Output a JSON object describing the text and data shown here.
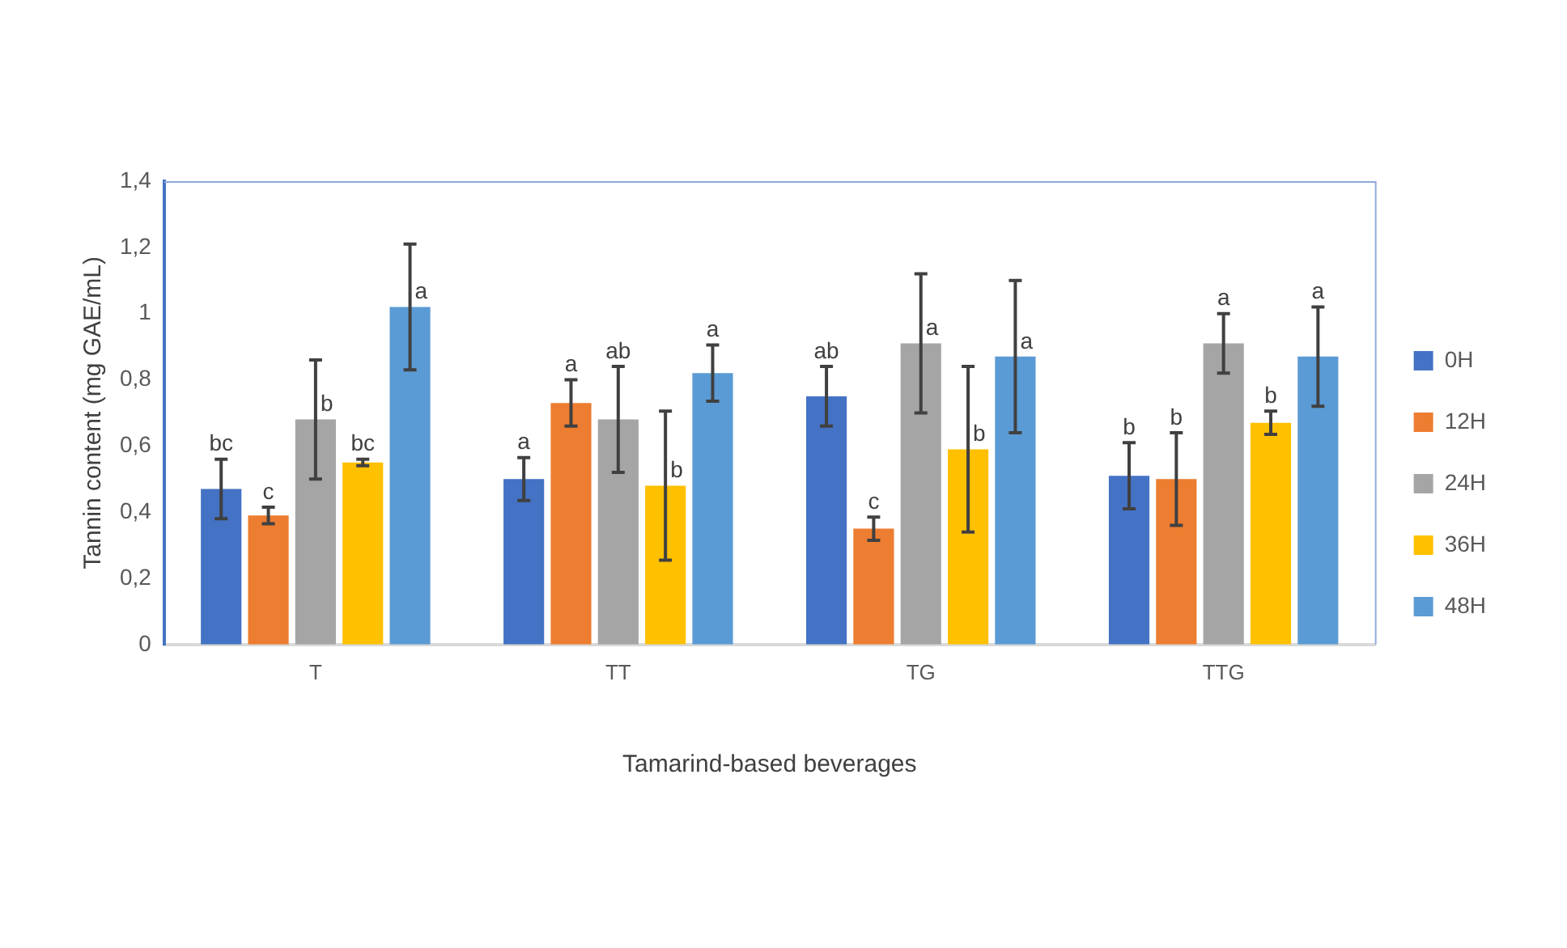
{
  "chart_data": {
    "type": "bar",
    "categories": [
      "T",
      "TT",
      "TG",
      "TTG"
    ],
    "series": [
      {
        "name": "0H",
        "color": "#4472c4",
        "values": [
          0.47,
          0.5,
          0.75,
          0.51
        ],
        "errors": [
          0.09,
          0.065,
          0.09,
          0.1
        ],
        "value_labels": [
          "bc",
          "a",
          "ab",
          "b"
        ]
      },
      {
        "name": "12H",
        "color": "#ed7d31",
        "values": [
          0.39,
          0.73,
          0.35,
          0.5
        ],
        "errors": [
          0.025,
          0.07,
          0.035,
          0.14
        ],
        "value_labels": [
          "c",
          "a",
          "c",
          "b"
        ]
      },
      {
        "name": "24H",
        "color": "#a5a5a5",
        "values": [
          0.68,
          0.68,
          0.91,
          0.91
        ],
        "errors": [
          0.18,
          0.16,
          0.21,
          0.09
        ],
        "value_labels": [
          "b",
          "ab",
          "a",
          "a"
        ]
      },
      {
        "name": "36H",
        "color": "#ffc000",
        "values": [
          0.55,
          0.48,
          0.59,
          0.67
        ],
        "errors": [
          0.01,
          0.225,
          0.25,
          0.035
        ],
        "value_labels": [
          "bc",
          "b",
          "b",
          "b"
        ]
      },
      {
        "name": "48H",
        "color": "#5b9bd5",
        "values": [
          1.02,
          0.82,
          0.87,
          0.87
        ],
        "errors": [
          0.19,
          0.085,
          0.23,
          0.15
        ],
        "value_labels": [
          "a",
          "a",
          "a",
          "a"
        ]
      }
    ],
    "xlabel": "Tamarind-based beverages",
    "ylabel": "Tannin content (mg GAE/mL)",
    "ylim": [
      0,
      1.4
    ],
    "yticks": [
      0,
      {
        "value": 0.2,
        "label": "0,2"
      },
      {
        "value": 0.4,
        "label": "0,4"
      },
      {
        "value": 0.6,
        "label": "0,6"
      },
      {
        "value": 0.8,
        "label": "0,8"
      },
      1,
      {
        "value": 1.2,
        "label": "1,2"
      },
      {
        "value": 1.4,
        "label": "1,4"
      }
    ],
    "grid": false,
    "legend": "right"
  }
}
